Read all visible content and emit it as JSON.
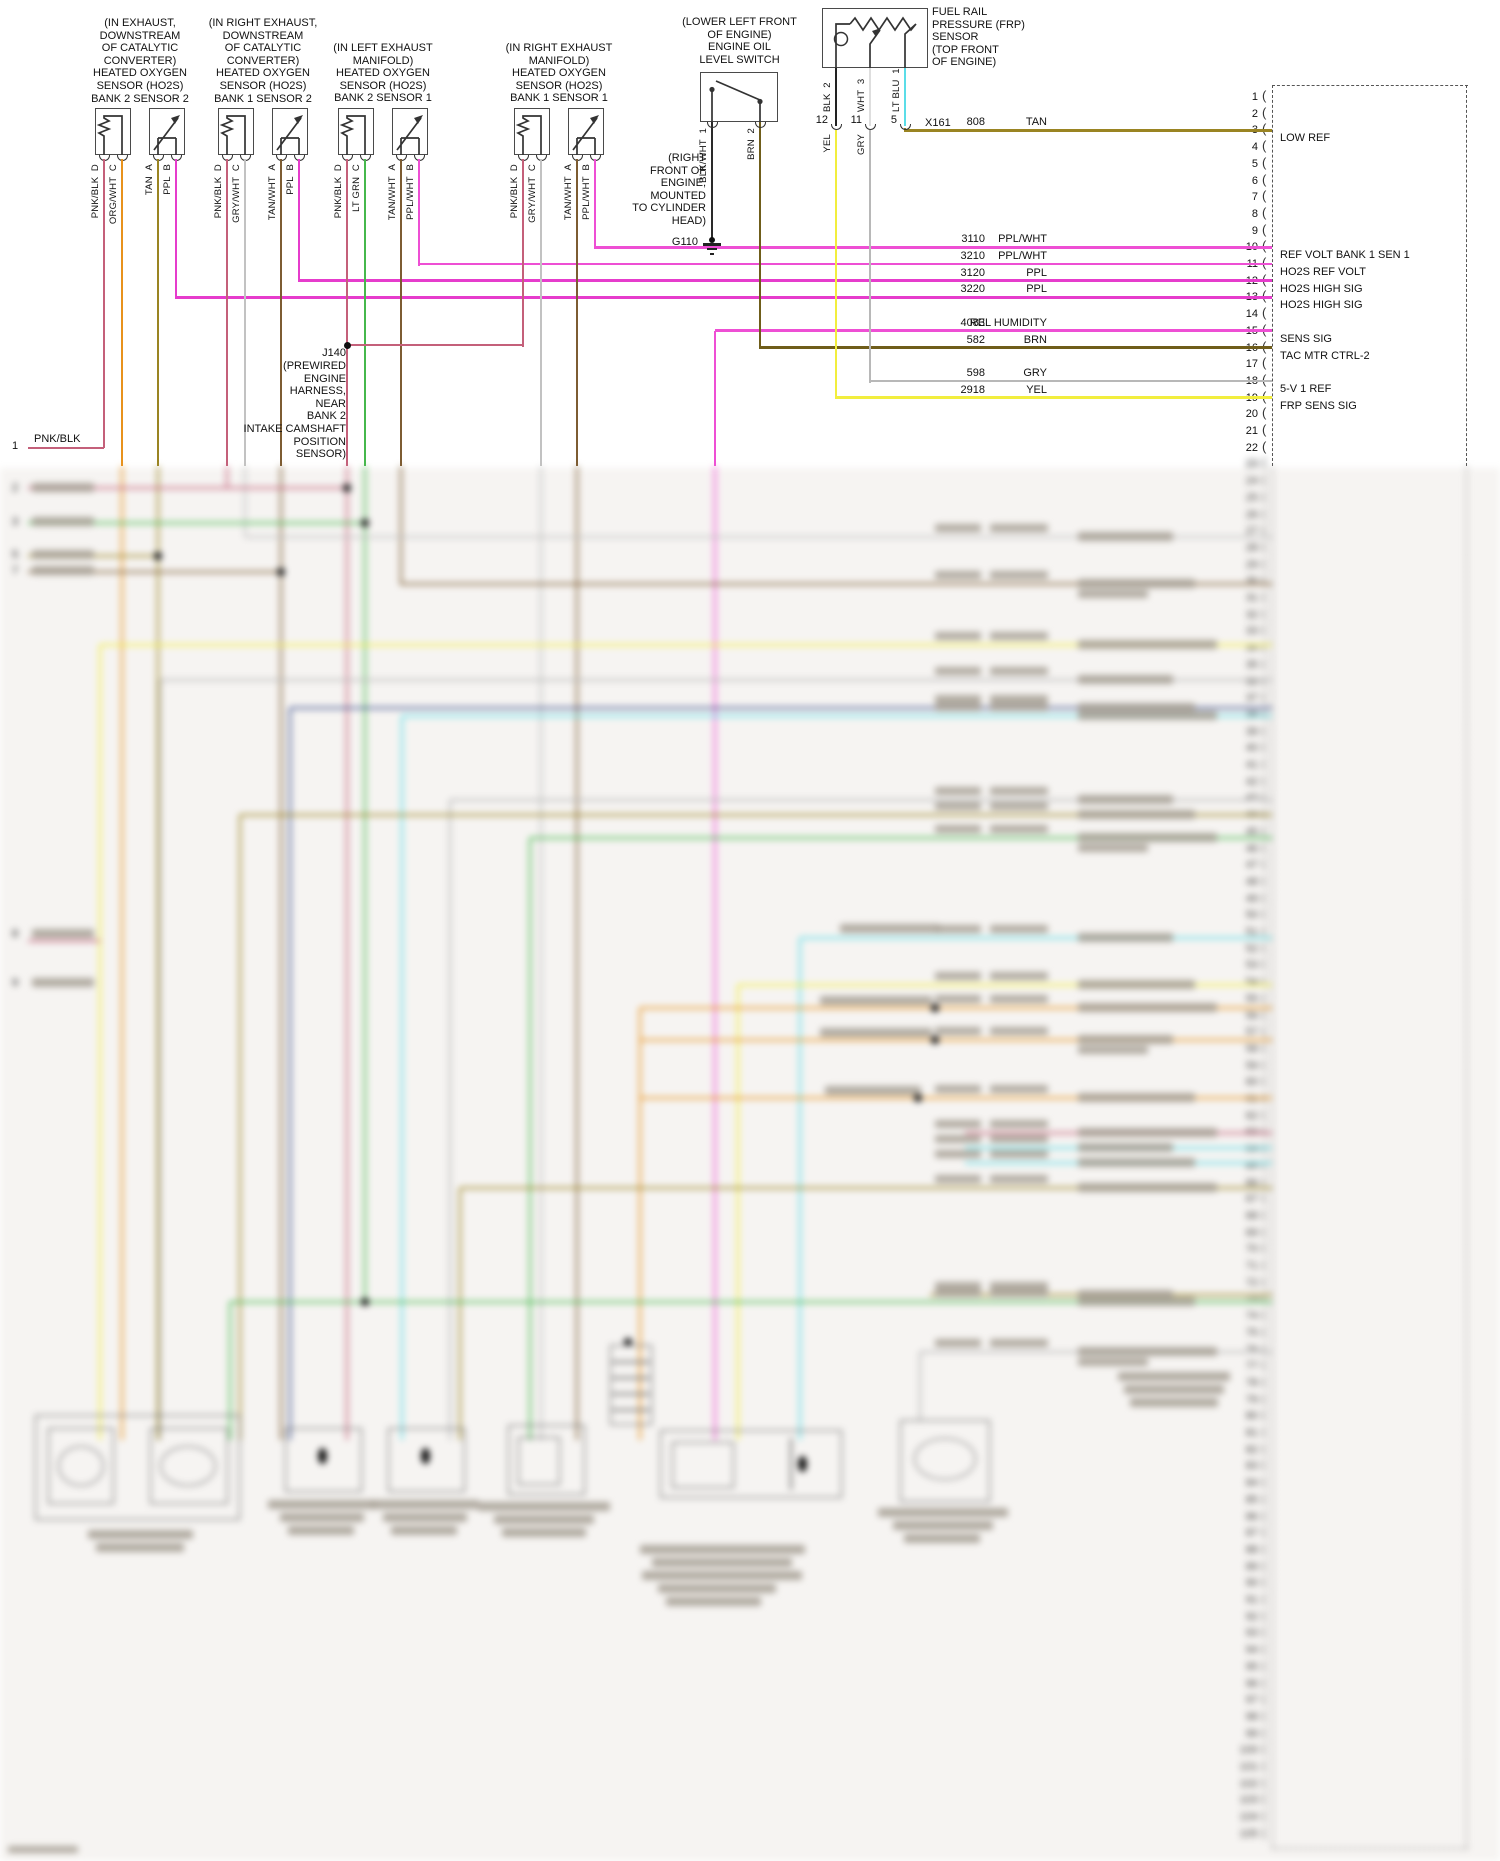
{
  "sensors": [
    {
      "location": "(IN EXHAUST,\nDOWNSTREAM\nOF CATALYTIC\nCONVERTER)\nHEATED OXYGEN\nSENSOR (HO2S)\nBANK 2 SENSOR 2",
      "pins": [
        {
          "id": "D",
          "wire": "PNK/BLK"
        },
        {
          "id": "C",
          "wire": "ORG/WHT"
        },
        {
          "id": "A",
          "wire": "TAN"
        },
        {
          "id": "B",
          "wire": "PPL"
        }
      ]
    },
    {
      "location": "(IN RIGHT EXHAUST,\nDOWNSTREAM\nOF CATALYTIC\nCONVERTER)\nHEATED OXYGEN\nSENSOR (HO2S)\nBANK 1 SENSOR 2",
      "pins": [
        {
          "id": "D",
          "wire": "PNK/BLK"
        },
        {
          "id": "C",
          "wire": "GRY/WHT"
        },
        {
          "id": "A",
          "wire": "TAN/WHT"
        },
        {
          "id": "B",
          "wire": "PPL"
        }
      ]
    },
    {
      "location": "(IN LEFT EXHAUST\nMANIFOLD)\nHEATED OXYGEN\nSENSOR (HO2S)\nBANK 2 SENSOR 1",
      "pins": [
        {
          "id": "D",
          "wire": "PNK/BLK"
        },
        {
          "id": "C",
          "wire": "LT GRN"
        },
        {
          "id": "A",
          "wire": "TAN/WHT"
        },
        {
          "id": "B",
          "wire": "PPL/WHT"
        }
      ]
    },
    {
      "location": "(IN RIGHT EXHAUST\nMANIFOLD)\nHEATED OXYGEN\nSENSOR (HO2S)\nBANK 1 SENSOR 1",
      "pins": [
        {
          "id": "D",
          "wire": "PNK/BLK"
        },
        {
          "id": "C",
          "wire": "GRY/WHT"
        },
        {
          "id": "A",
          "wire": "TAN/WHT"
        },
        {
          "id": "B",
          "wire": "PPL/WHT"
        }
      ]
    }
  ],
  "oil_level_switch": {
    "location": "(LOWER LEFT FRONT\nOF ENGINE)\nENGINE OIL\nLEVEL SWITCH",
    "pins": [
      {
        "id": "1",
        "wire": "BLK/WHT"
      },
      {
        "id": "2",
        "wire": "BRN"
      }
    ]
  },
  "ground": {
    "label": "G110",
    "location": "(RIGHT\nFRONT OF\nENGINE,\nMOUNTED\nTO CYLINDER\nHEAD)"
  },
  "frp_sensor": {
    "title": "FUEL RAIL\nPRESSURE (FRP)\nSENSOR\n(TOP FRONT\nOF ENGINE)",
    "pins": [
      {
        "id": "2",
        "wire": "BLK"
      },
      {
        "id": "3",
        "wire": "WHT"
      },
      {
        "id": "1",
        "wire": "LT BLU"
      }
    ],
    "inline_connector": {
      "label": "X161",
      "pin_ids": [
        "12",
        "11",
        "5"
      ],
      "out_wires": [
        "YEL",
        "GRY"
      ]
    }
  },
  "junction": {
    "label": "J140",
    "location": "(PREWIRED\nENGINE\nHARNESS,\nNEAR\nBANK 2\nINTAKE CAMSHAFT\nPOSITION\nSENSOR)"
  },
  "offpage": {
    "id": "1",
    "wire": "PNK/BLK"
  },
  "pcm_connector": {
    "visible_pins": "1-22",
    "rows": [
      {
        "pin": 3,
        "circuit": "808",
        "wire": "TAN",
        "signal": "LOW REF"
      },
      {
        "pin": 10,
        "circuit": "3110",
        "wire": "PPL/WHT",
        "signal": "REF VOLT BANK 1 SEN 1"
      },
      {
        "pin": 11,
        "circuit": "3210",
        "wire": "PPL/WHT",
        "signal": "HO2S REF VOLT"
      },
      {
        "pin": 12,
        "circuit": "3120",
        "wire": "PPL",
        "signal": "HO2S HIGH SIG"
      },
      {
        "pin": 13,
        "circuit": "3220",
        "wire": "PPL",
        "signal": "HO2S HIGH SIG"
      },
      {
        "pin": 15,
        "circuit": "4083",
        "wire": "REL HUMIDITY",
        "signal": "SENS SIG"
      },
      {
        "pin": 16,
        "circuit": "582",
        "wire": "BRN",
        "signal": "TAC MTR CTRL-2"
      },
      {
        "pin": 18,
        "circuit": "598",
        "wire": "GRY",
        "signal": "5-V 1 REF"
      },
      {
        "pin": 19,
        "circuit": "2918",
        "wire": "YEL",
        "signal": "FRP SENS SIG"
      }
    ]
  },
  "colors": {
    "PNK/BLK": "#c4607a",
    "ORG/WHT": "#e8921c",
    "TAN": "#9a8422",
    "PPL": "#e63ccc",
    "PPL/WHT": "#ee4fd4",
    "GRY/WHT": "#c2c2c2",
    "TAN/WHT": "#7d5c32",
    "LT GRN": "#46b84c",
    "BLK/WHT": "#2a2a2a",
    "BRN": "#6f5d1a",
    "YEL": "#f2ee3e",
    "GRY": "#b8b8b8",
    "LT BLU": "#5bdde8",
    "BLK": "#222222",
    "WHT": "#dedede",
    "DK BLU": "#3a4e8c"
  }
}
